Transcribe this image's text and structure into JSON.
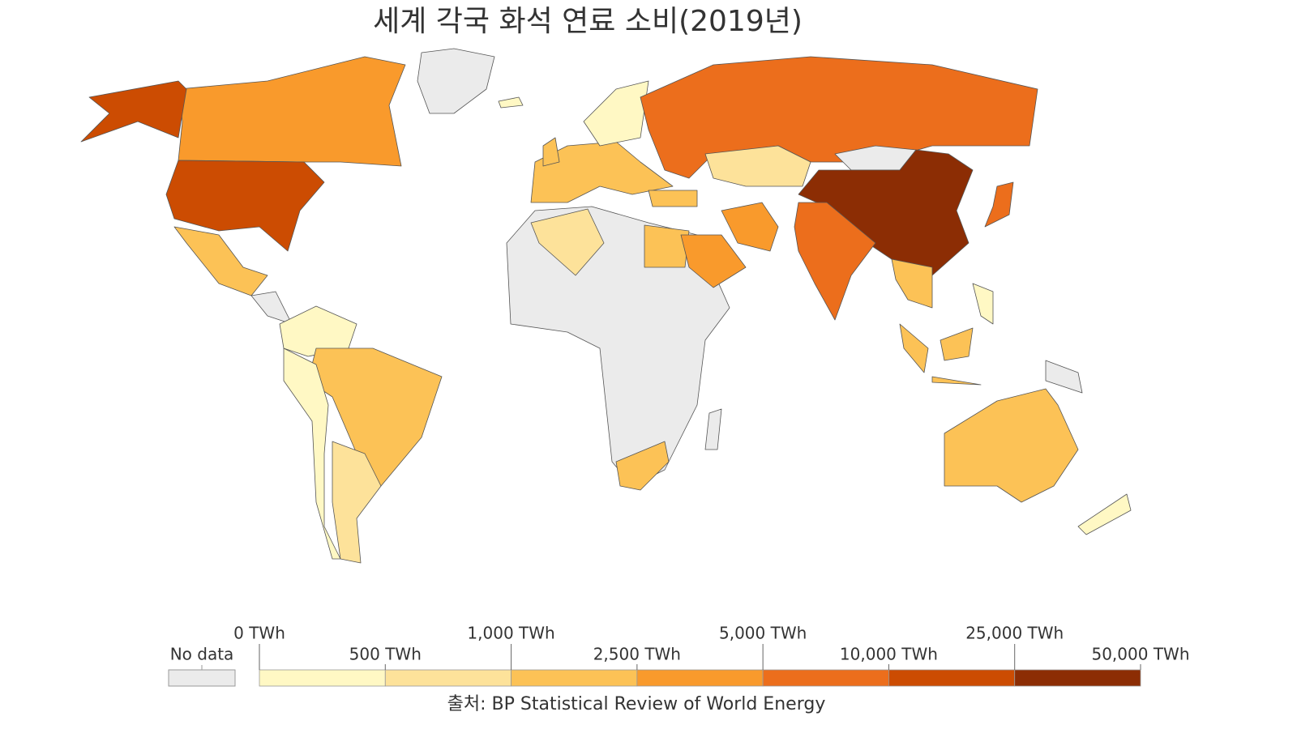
{
  "chart_data": {
    "type": "choropleth",
    "title": "세계 각국 화석 연료 소비(2019년)",
    "source": "출처: BP Statistical Review of World Energy",
    "legend": {
      "no_data_label": "No data",
      "no_data_color": "#ebebeb",
      "bins": [
        {
          "value": 0,
          "label": "0 TWh"
        },
        {
          "value": 500,
          "label": "500 TWh"
        },
        {
          "value": 1000,
          "label": "1,000 TWh"
        },
        {
          "value": 2500,
          "label": "2,500 TWh"
        },
        {
          "value": 5000,
          "label": "5,000 TWh"
        },
        {
          "value": 10000,
          "label": "10,000 TWh"
        },
        {
          "value": 25000,
          "label": "25,000 TWh"
        },
        {
          "value": 50000,
          "label": "50,000 TWh"
        }
      ],
      "colors": [
        "#fff8c4",
        "#fde29a",
        "#fcc256",
        "#f99a2c",
        "#ec6e1c",
        "#cc4c02",
        "#8c2d04"
      ]
    }
  }
}
